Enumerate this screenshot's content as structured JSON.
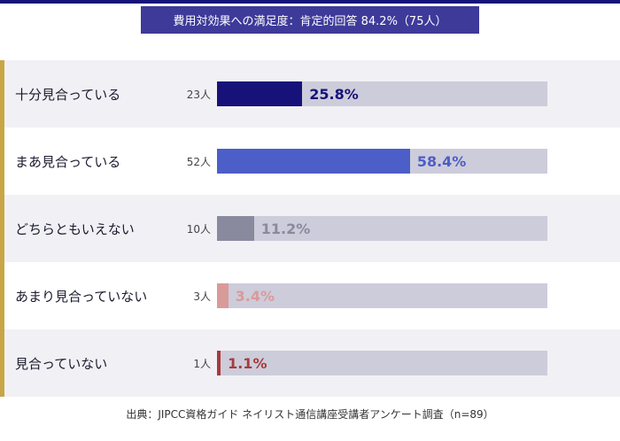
{
  "title": "費用対効果への満足度：肯定的回答 84.2%（75人）",
  "source": "出典：JIPCC資格ガイド ネイリスト通信講座受講者アンケート調査（n=89）",
  "chart_data": {
    "type": "bar",
    "orientation": "horizontal",
    "xlim": [
      0,
      100
    ],
    "categories": [
      "十分見合っている",
      "まあ見合っている",
      "どちらともいえない",
      "あまり見合っていない",
      "見合っていない"
    ],
    "counts": [
      "23人",
      "52人",
      "10人",
      "3人",
      "1人"
    ],
    "values": [
      25.8,
      58.4,
      11.2,
      3.4,
      1.1
    ],
    "value_labels": [
      "25.8%",
      "58.4%",
      "11.2%",
      "3.4%",
      "1.1%"
    ],
    "colors": [
      "#16127a",
      "#4c5ec8",
      "#8a8a9e",
      "#d99a9a",
      "#a83a3a"
    ],
    "track_color": "#cdccda",
    "accent_color": "#c8a646"
  }
}
